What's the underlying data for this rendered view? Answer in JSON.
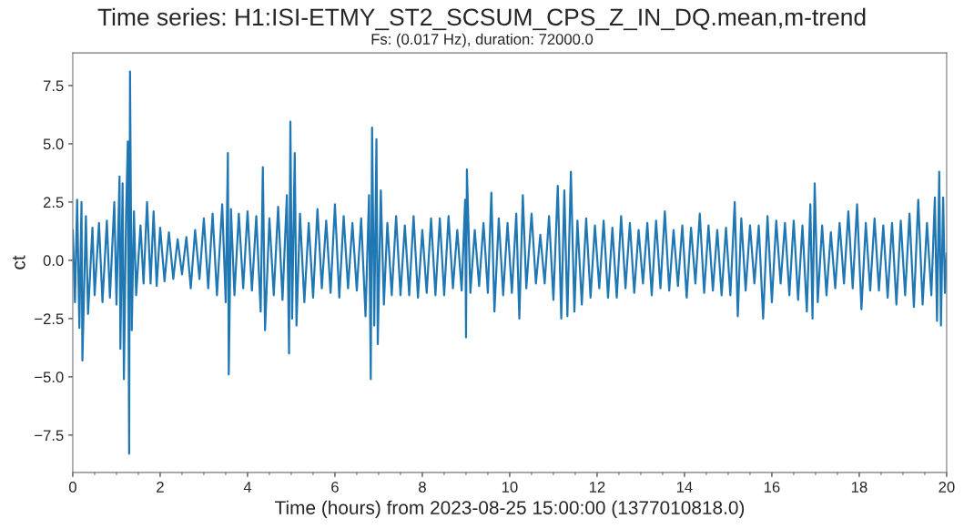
{
  "chart_data": {
    "type": "line",
    "title": "Time series: H1:ISI-ETMY_ST2_SCSUM_CPS_Z_IN_DQ.mean,m-trend",
    "subtitle": "Fs: (0.017 Hz), duration: 72000.0",
    "xlabel": "Time (hours) from 2023-08-25 15:00:00 (1377010818.0)",
    "ylabel": "ct",
    "xlim": [
      0,
      20
    ],
    "xticks": [
      0,
      2,
      4,
      6,
      8,
      10,
      12,
      14,
      16,
      18,
      20
    ],
    "ylim": [
      -9.1,
      8.9
    ],
    "yticks": [
      {
        "value": -7.5,
        "label": "−7.5"
      },
      {
        "value": -5.0,
        "label": "−5.0"
      },
      {
        "value": -2.5,
        "label": "−2.5"
      },
      {
        "value": 0,
        "label": "0.0"
      },
      2.5,
      {
        "value": 5,
        "label": "5.0"
      },
      7.5
    ],
    "grid": false,
    "legend": false,
    "series": [
      {
        "color": "#1f77b4",
        "x": [
          0,
          0.05,
          0.1,
          0.15,
          0.2,
          0.22,
          0.3,
          0.35,
          0.45,
          0.5,
          0.6,
          0.68,
          0.78,
          0.85,
          0.95,
          1.0,
          1.07,
          1.09,
          1.14,
          1.17,
          1.22,
          1.26,
          1.29,
          1.31,
          1.35,
          1.4,
          1.45,
          1.55,
          1.62,
          1.7,
          1.78,
          1.85,
          1.92,
          2.0,
          2.1,
          2.2,
          2.3,
          2.4,
          2.5,
          2.6,
          2.7,
          2.8,
          2.9,
          3.0,
          3.1,
          3.2,
          3.3,
          3.42,
          3.5,
          3.55,
          3.57,
          3.62,
          3.7,
          3.8,
          3.9,
          4.0,
          4.1,
          4.2,
          4.3,
          4.35,
          4.4,
          4.5,
          4.6,
          4.7,
          4.8,
          4.9,
          4.95,
          4.98,
          5.02,
          5.08,
          5.12,
          5.2,
          5.3,
          5.4,
          5.5,
          5.6,
          5.7,
          5.8,
          5.9,
          6.0,
          6.1,
          6.2,
          6.3,
          6.4,
          6.5,
          6.6,
          6.7,
          6.78,
          6.82,
          6.85,
          6.9,
          6.95,
          6.98,
          7.05,
          7.12,
          7.2,
          7.3,
          7.4,
          7.5,
          7.6,
          7.7,
          7.8,
          7.9,
          8.0,
          8.1,
          8.2,
          8.3,
          8.4,
          8.5,
          8.6,
          8.7,
          8.8,
          8.9,
          8.98,
          9.0,
          9.02,
          9.1,
          9.2,
          9.3,
          9.4,
          9.5,
          9.58,
          9.65,
          9.75,
          9.85,
          9.95,
          10.05,
          10.15,
          10.22,
          10.3,
          10.38,
          10.5,
          10.6,
          10.7,
          10.8,
          10.9,
          11.0,
          11.1,
          11.18,
          11.25,
          11.32,
          11.4,
          11.48,
          11.55,
          11.65,
          11.75,
          11.85,
          11.95,
          12.05,
          12.15,
          12.25,
          12.35,
          12.45,
          12.55,
          12.65,
          12.75,
          12.85,
          12.95,
          13.05,
          13.15,
          13.25,
          13.35,
          13.45,
          13.55,
          13.65,
          13.75,
          13.85,
          13.95,
          14.05,
          14.15,
          14.25,
          14.35,
          14.45,
          14.55,
          14.65,
          14.75,
          14.85,
          14.95,
          15.05,
          15.15,
          15.22,
          15.3,
          15.4,
          15.5,
          15.6,
          15.7,
          15.8,
          15.9,
          16.0,
          16.1,
          16.2,
          16.3,
          16.4,
          16.5,
          16.6,
          16.7,
          16.8,
          16.88,
          16.93,
          16.98,
          17.05,
          17.15,
          17.25,
          17.35,
          17.45,
          17.55,
          17.65,
          17.75,
          17.85,
          17.95,
          18.05,
          18.15,
          18.25,
          18.35,
          18.45,
          18.55,
          18.65,
          18.75,
          18.85,
          18.95,
          19.05,
          19.15,
          19.25,
          19.35,
          19.45,
          19.55,
          19.65,
          19.73,
          19.78,
          19.83,
          19.87,
          19.92,
          19.96,
          20.0
        ],
        "values": [
          1.3,
          -1.8,
          2.6,
          -2.9,
          2.5,
          -4.3,
          1.9,
          -2.3,
          1.4,
          -1.5,
          1.6,
          -1.8,
          1.7,
          -1.6,
          2.5,
          -1.9,
          3.6,
          -3.8,
          3.3,
          -5.1,
          2.0,
          5.1,
          -8.3,
          8.1,
          -3.0,
          2.1,
          -1.5,
          1.5,
          -1.0,
          2.5,
          -1.0,
          2.1,
          -1.1,
          1.4,
          -0.9,
          1.2,
          -0.8,
          0.9,
          -0.6,
          1.0,
          -1.2,
          1.3,
          -0.8,
          1.8,
          -1.2,
          2.0,
          -1.5,
          2.4,
          -1.8,
          4.6,
          -4.9,
          2.2,
          -1.5,
          2.0,
          -1.2,
          2.1,
          -1.3,
          1.9,
          -2.2,
          4.0,
          -3.0,
          1.8,
          -1.5,
          2.3,
          -1.7,
          2.8,
          -4.0,
          5.95,
          -2.5,
          4.6,
          -2.8,
          2.0,
          -1.8,
          1.6,
          -1.6,
          2.2,
          -1.2,
          1.7,
          -1.4,
          2.4,
          -1.6,
          1.9,
          -1.2,
          1.6,
          -1.3,
          1.8,
          -2.4,
          2.8,
          -5.1,
          5.7,
          -2.8,
          5.2,
          -3.6,
          3.0,
          -1.9,
          1.6,
          -1.5,
          1.9,
          -1.5,
          1.5,
          -1.5,
          1.9,
          -1.6,
          1.3,
          -1.4,
          1.8,
          -1.5,
          1.8,
          -1.5,
          1.9,
          -1.2,
          1.3,
          -1.3,
          2.6,
          -3.3,
          3.9,
          -1.4,
          1.3,
          -1.1,
          1.6,
          -1.4,
          2.9,
          -2.2,
          1.8,
          -1.5,
          1.6,
          -1.4,
          2.0,
          -2.5,
          2.8,
          -1.2,
          2.0,
          -1.0,
          1.1,
          -1.0,
          1.9,
          -1.7,
          3.2,
          -2.5,
          3.0,
          -2.4,
          3.8,
          -2.2,
          1.7,
          -1.9,
          1.8,
          -1.6,
          1.5,
          -1.2,
          1.7,
          -1.6,
          1.4,
          -1.6,
          1.9,
          -1.2,
          1.6,
          -1.4,
          1.3,
          -1.0,
          1.6,
          -1.5,
          1.7,
          -1.2,
          2.1,
          -1.3,
          1.3,
          -1.1,
          1.5,
          -1.6,
          1.4,
          -1.0,
          2.0,
          -1.4,
          1.5,
          -1.3,
          1.3,
          -1.5,
          1.4,
          -1.5,
          2.5,
          -2.4,
          1.8,
          -1.3,
          1.5,
          -1.0,
          1.5,
          -2.5,
          1.9,
          -1.8,
          1.7,
          -1.0,
          1.6,
          -1.5,
          1.7,
          -1.7,
          1.5,
          -2.2,
          2.4,
          -2.5,
          3.3,
          -1.8,
          1.5,
          -1.5,
          1.2,
          -1.2,
          1.6,
          -1.0,
          2.1,
          -1.2,
          2.4,
          -2.1,
          1.6,
          -1.3,
          1.8,
          -1.3,
          1.5,
          -1.6,
          1.6,
          -1.9,
          1.7,
          -1.5,
          2.0,
          -2.0,
          2.6,
          -1.9,
          1.6,
          -1.5,
          2.7,
          -2.6,
          3.8,
          -2.8,
          2.7,
          -1.4,
          0.3
        ]
      }
    ]
  }
}
